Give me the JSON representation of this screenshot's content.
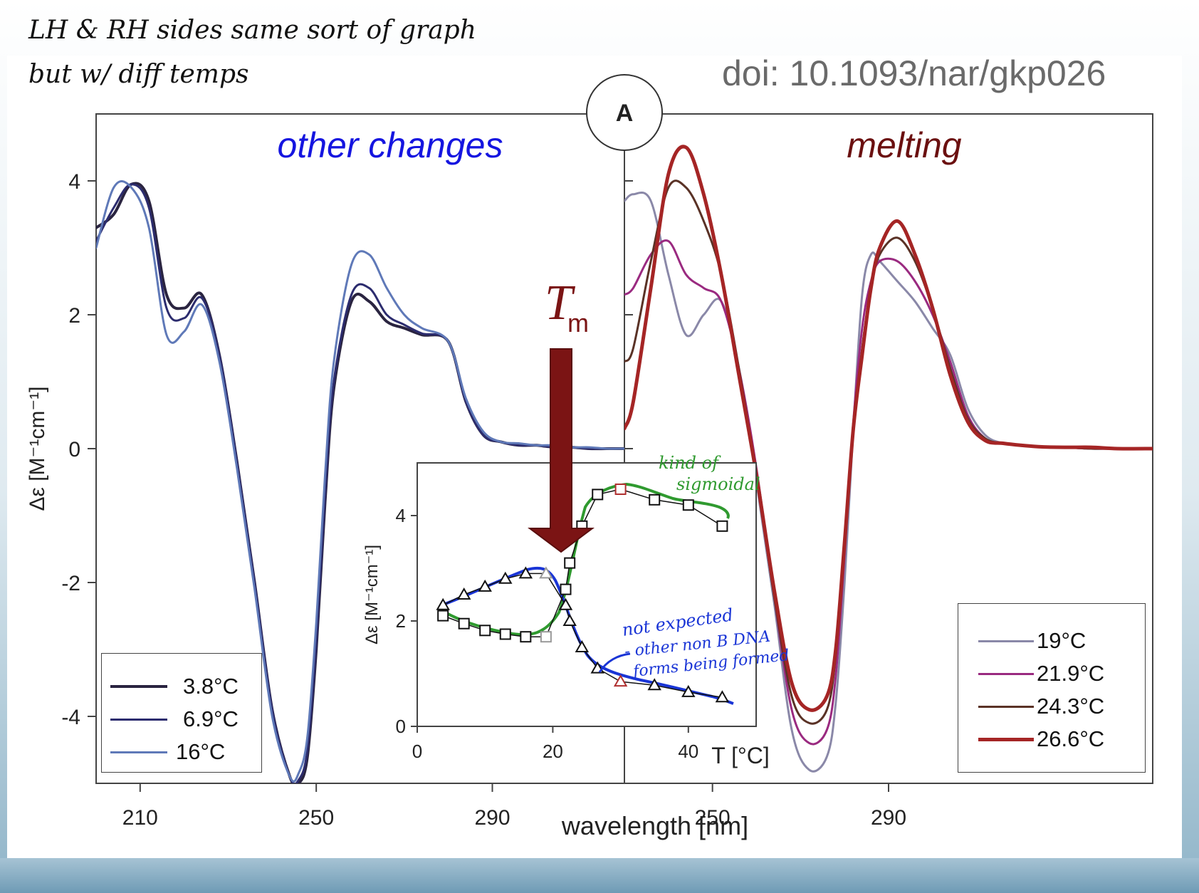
{
  "annotations": {
    "top_note_line1": "LH & RH sides same sort of graph",
    "top_note_line2": "but w/ diff temps",
    "doi": "doi: 10.1093/nar/gkp026",
    "panel_label": "A",
    "tm_label": "T",
    "tm_sub": "m",
    "inset_note_green_1": "kind of",
    "inset_note_green_2": "sigmoidal",
    "inset_note_blue_1": "not expected",
    "inset_note_blue_2": "- other non B DNA",
    "inset_note_blue_3": "forms being formed",
    "arrow_color": "#7b1414",
    "green_color": "#2f9a2f",
    "blue_color": "#1a35d6"
  },
  "chart_data": [
    {
      "type": "line",
      "panel": "left",
      "title": "other changes",
      "title_color": "#1515e0",
      "xlabel": "wavelength [nm]",
      "ylabel": "Δε [M⁻¹cm⁻¹]",
      "xlim": [
        200,
        320
      ],
      "ylim": [
        -5.0,
        5.0
      ],
      "xticks": [
        210,
        250,
        290
      ],
      "yticks": [
        4,
        2,
        0,
        -2,
        -4
      ],
      "legend_position": "bottom-left",
      "series": [
        {
          "name": "3.8°C",
          "color": "#2a2440",
          "width": 4,
          "x": [
            200,
            204,
            208,
            212,
            216,
            220,
            224,
            228,
            232,
            236,
            240,
            244,
            246,
            248,
            250,
            252,
            254,
            258,
            262,
            266,
            270,
            274,
            280,
            284,
            288,
            292,
            296,
            300,
            304,
            308,
            312,
            316,
            320
          ],
          "y": [
            3.3,
            3.5,
            3.95,
            3.7,
            2.3,
            2.1,
            2.3,
            1.4,
            -0.2,
            -2.0,
            -3.9,
            -4.9,
            -5.0,
            -4.6,
            -3.0,
            -0.8,
            0.9,
            2.2,
            2.2,
            1.9,
            1.8,
            1.7,
            1.6,
            0.7,
            0.2,
            0.1,
            0.05,
            0.05,
            0.02,
            0.02,
            0.0,
            0.0,
            0.0
          ]
        },
        {
          "name": "6.9°C",
          "color": "#2c2c6e",
          "width": 3,
          "x": [
            200,
            204,
            208,
            212,
            216,
            220,
            224,
            228,
            232,
            236,
            240,
            244,
            246,
            248,
            250,
            252,
            254,
            258,
            262,
            266,
            270,
            274,
            280,
            284,
            288,
            292,
            296,
            300,
            304,
            308,
            312,
            316,
            320
          ],
          "y": [
            3.1,
            3.6,
            3.95,
            3.6,
            2.1,
            1.95,
            2.25,
            1.4,
            -0.2,
            -2.0,
            -3.9,
            -4.9,
            -4.95,
            -4.5,
            -2.9,
            -0.7,
            1.0,
            2.3,
            2.4,
            2.0,
            1.85,
            1.72,
            1.6,
            0.7,
            0.2,
            0.1,
            0.05,
            0.05,
            0.02,
            0.02,
            0.0,
            0.0,
            0.0
          ]
        },
        {
          "name": "16°C",
          "color": "#5f79b8",
          "width": 3,
          "x": [
            200,
            204,
            208,
            212,
            216,
            220,
            224,
            228,
            232,
            236,
            240,
            244,
            246,
            248,
            250,
            252,
            254,
            258,
            262,
            266,
            270,
            274,
            280,
            284,
            288,
            292,
            296,
            300,
            304,
            308,
            312,
            316,
            320
          ],
          "y": [
            3.0,
            3.9,
            3.9,
            3.3,
            1.7,
            1.75,
            2.15,
            1.3,
            -0.3,
            -2.1,
            -4.0,
            -4.9,
            -4.85,
            -4.3,
            -2.6,
            -0.4,
            1.3,
            2.75,
            2.9,
            2.4,
            2.0,
            1.8,
            1.6,
            0.75,
            0.25,
            0.1,
            0.08,
            0.05,
            0.05,
            0.02,
            0.02,
            0.0,
            0.0
          ]
        }
      ]
    },
    {
      "type": "line",
      "panel": "right",
      "title": "melting",
      "title_color": "#6b1010",
      "xlim": [
        230,
        350
      ],
      "ylim": [
        -5.0,
        5.0
      ],
      "xticks": [
        250,
        290
      ],
      "legend_position": "bottom-right",
      "series": [
        {
          "name": "19°C",
          "color": "#8a88a8",
          "width": 3,
          "x": [
            230,
            232,
            236,
            240,
            244,
            248,
            252,
            256,
            260,
            264,
            268,
            272,
            276,
            278,
            280,
            282,
            284,
            286,
            288,
            292,
            296,
            300,
            304,
            308,
            312,
            316,
            320,
            324,
            330,
            336,
            342,
            350
          ],
          "y": [
            3.7,
            3.8,
            3.7,
            2.6,
            1.7,
            2.0,
            2.2,
            1.2,
            -0.5,
            -2.3,
            -4.2,
            -4.8,
            -4.6,
            -3.8,
            -2.0,
            0.3,
            2.3,
            2.9,
            2.8,
            2.5,
            2.2,
            1.8,
            1.4,
            0.6,
            0.2,
            0.08,
            0.05,
            0.03,
            0.02,
            0.0,
            0.0,
            0.0
          ]
        },
        {
          "name": "21.9°C",
          "color": "#9a2a80",
          "width": 3,
          "x": [
            230,
            232,
            236,
            240,
            244,
            248,
            252,
            256,
            260,
            264,
            268,
            272,
            276,
            278,
            280,
            282,
            284,
            286,
            288,
            292,
            296,
            300,
            304,
            308,
            312,
            316,
            320,
            324,
            330,
            336,
            342,
            350
          ],
          "y": [
            2.3,
            2.4,
            2.9,
            3.1,
            2.6,
            2.4,
            2.2,
            1.2,
            -0.3,
            -2.2,
            -3.9,
            -4.4,
            -4.2,
            -3.4,
            -1.6,
            0.4,
            1.8,
            2.5,
            2.8,
            2.8,
            2.5,
            2.0,
            1.3,
            0.5,
            0.15,
            0.08,
            0.05,
            0.03,
            0.02,
            0.0,
            0.0,
            0.0
          ]
        },
        {
          "name": "24.3°C",
          "color": "#5a3226",
          "width": 3,
          "x": [
            230,
            232,
            236,
            240,
            244,
            248,
            252,
            256,
            260,
            264,
            268,
            272,
            276,
            278,
            280,
            282,
            284,
            286,
            288,
            292,
            296,
            300,
            304,
            308,
            312,
            316,
            320,
            324,
            330,
            336,
            342,
            350
          ],
          "y": [
            1.3,
            1.5,
            2.8,
            3.9,
            3.9,
            3.4,
            2.6,
            1.2,
            -0.4,
            -2.2,
            -3.7,
            -4.1,
            -3.9,
            -3.1,
            -1.5,
            0.3,
            1.5,
            2.4,
            2.9,
            3.15,
            2.8,
            2.1,
            1.2,
            0.45,
            0.15,
            0.08,
            0.05,
            0.03,
            0.02,
            0.0,
            0.0,
            0.0
          ]
        },
        {
          "name": "26.6°C",
          "color": "#a52525",
          "width": 5,
          "x": [
            230,
            232,
            236,
            240,
            244,
            248,
            252,
            256,
            260,
            264,
            268,
            272,
            276,
            278,
            280,
            282,
            284,
            286,
            288,
            292,
            296,
            300,
            304,
            308,
            312,
            316,
            320,
            324,
            330,
            336,
            342,
            350
          ],
          "y": [
            0.3,
            0.7,
            2.4,
            4.1,
            4.5,
            3.8,
            2.6,
            1.1,
            -0.4,
            -2.1,
            -3.5,
            -3.9,
            -3.7,
            -3.0,
            -1.4,
            0.3,
            1.4,
            2.4,
            3.0,
            3.4,
            2.9,
            2.1,
            1.1,
            0.4,
            0.12,
            0.08,
            0.05,
            0.03,
            0.02,
            0.02,
            0.0,
            0.0
          ]
        }
      ]
    },
    {
      "type": "line",
      "panel": "inset",
      "xlabel": "T [°C]",
      "ylabel": "Δε [M⁻¹cm⁻¹]",
      "xlim": [
        0,
        50
      ],
      "ylim": [
        0,
        5
      ],
      "xticks": [
        0,
        20,
        40
      ],
      "yticks": [
        0,
        2,
        4
      ],
      "series": [
        {
          "marker": "square",
          "color": "#111111",
          "x": [
            3.8,
            6.9,
            10,
            13,
            16,
            19,
            21.9,
            22.5,
            24.3,
            26.6,
            30,
            35,
            40,
            45
          ],
          "y": [
            2.1,
            1.95,
            1.82,
            1.75,
            1.7,
            1.7,
            2.6,
            3.1,
            3.8,
            4.4,
            4.5,
            4.3,
            4.2,
            3.8
          ],
          "highlight": [
            {
              "index": 5,
              "color": "#999999"
            },
            {
              "index": 10,
              "color": "#b03030"
            }
          ]
        },
        {
          "marker": "triangle",
          "color": "#111111",
          "x": [
            3.8,
            6.9,
            10,
            13,
            16,
            19,
            21.9,
            22.5,
            24.3,
            26.6,
            30,
            35,
            40,
            45
          ],
          "y": [
            2.3,
            2.5,
            2.65,
            2.8,
            2.9,
            2.9,
            2.3,
            2.0,
            1.5,
            1.1,
            0.85,
            0.78,
            0.65,
            0.55
          ],
          "highlight": [
            {
              "index": 5,
              "color": "#999999"
            },
            {
              "index": 10,
              "color": "#b03030"
            }
          ]
        }
      ]
    }
  ]
}
